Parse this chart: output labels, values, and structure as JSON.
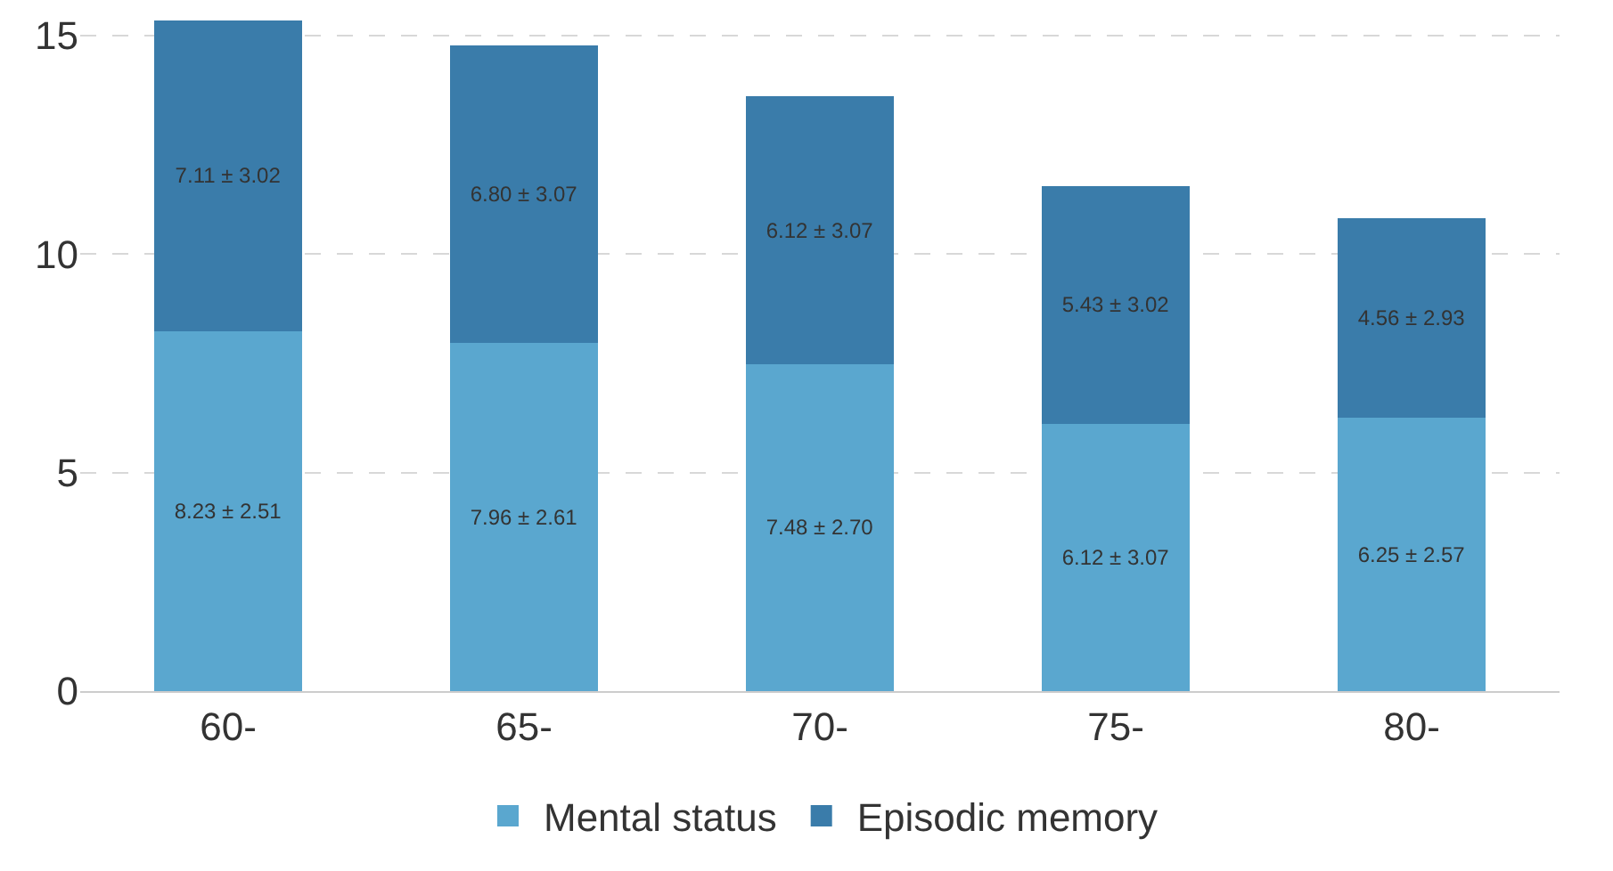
{
  "chart_data": {
    "type": "bar",
    "stacked": true,
    "categories": [
      "60-",
      "65-",
      "70-",
      "75-",
      "80-"
    ],
    "series": [
      {
        "name": "Mental status",
        "color": "#5aa7cf",
        "values": [
          8.23,
          7.96,
          7.48,
          6.12,
          6.25
        ],
        "value_labels": [
          "8.23 ± 2.51",
          "7.96 ± 2.61",
          "7.48 ± 2.70",
          "6.12 ± 3.07",
          "6.25 ± 2.57"
        ]
      },
      {
        "name": "Episodic memory",
        "color": "#3a7caa",
        "values": [
          7.11,
          6.8,
          6.12,
          5.43,
          4.56
        ],
        "value_labels": [
          "7.11 ± 3.02",
          "6.80 ± 3.07",
          "6.12 ± 3.07",
          "5.43 ± 3.02",
          "4.56 ± 2.93"
        ]
      }
    ],
    "ylim": [
      0,
      15.4
    ],
    "yticks": [
      0,
      5,
      10,
      15
    ],
    "grid": "y",
    "legend": "bottom"
  }
}
